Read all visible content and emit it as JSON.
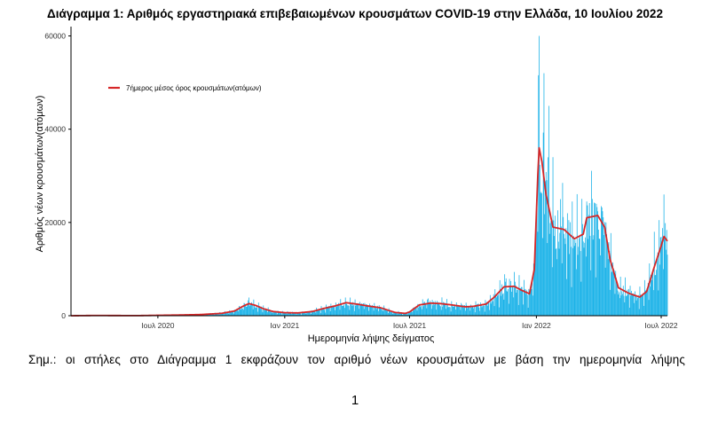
{
  "page": {
    "note": "Σημ.:  οι στήλες στο Διάγραμμα 1 εκφράζουν τον αριθμό νέων κρουσμάτων με βάση την ημερομηνία λήψης",
    "page_number": "1"
  },
  "colors": {
    "bars": "#1ab2e8",
    "line": "#d62728",
    "axis": "#000000"
  },
  "chart_data": {
    "type": "bar",
    "title": "Διάγραμμα 1: Αριθμός εργαστηριακά επιβεβαιωμένων κρουσμάτων COVID-19 στην Ελλάδα, 10 Ιουλίου 2022",
    "xlabel": "Ημερομηνία λήψης δείγματος",
    "ylabel": "Αριθμός νέων κρουσμάτων(ατόμων)",
    "x_range": [
      "2020-02-26",
      "2022-07-10"
    ],
    "ylim": [
      0,
      62000
    ],
    "y_ticks": [
      0,
      20000,
      40000,
      60000
    ],
    "x_ticks": [
      {
        "label": "Ιουλ 2020",
        "date": "2020-07-01"
      },
      {
        "label": "Ιαν 2021",
        "date": "2021-01-01"
      },
      {
        "label": "Ιουλ 2021",
        "date": "2021-07-01"
      },
      {
        "label": "Ιαν 2022",
        "date": "2022-01-01"
      },
      {
        "label": "Ιουλ 2022",
        "date": "2022-07-01"
      }
    ],
    "grid": false,
    "legend": {
      "position": "top-left",
      "entries": [
        "7ήμερος μέσος όρος κρουσμάτων(ατόμων)"
      ]
    },
    "series": [
      {
        "name": "7ήμερος μέσος όρος κρουσμάτων(ατόμων)",
        "kind": "line",
        "points": [
          [
            "2020-02-26",
            0
          ],
          [
            "2020-04-01",
            50
          ],
          [
            "2020-06-01",
            20
          ],
          [
            "2020-08-01",
            150
          ],
          [
            "2020-09-01",
            250
          ],
          [
            "2020-10-01",
            500
          ],
          [
            "2020-10-20",
            1000
          ],
          [
            "2020-11-01",
            2000
          ],
          [
            "2020-11-10",
            2600
          ],
          [
            "2020-11-20",
            2200
          ],
          [
            "2020-12-01",
            1500
          ],
          [
            "2020-12-15",
            900
          ],
          [
            "2021-01-01",
            650
          ],
          [
            "2021-01-20",
            600
          ],
          [
            "2021-02-10",
            900
          ],
          [
            "2021-02-25",
            1500
          ],
          [
            "2021-03-15",
            2100
          ],
          [
            "2021-03-31",
            2800
          ],
          [
            "2021-04-15",
            2500
          ],
          [
            "2021-05-01",
            2100
          ],
          [
            "2021-05-20",
            1700
          ],
          [
            "2021-06-10",
            700
          ],
          [
            "2021-06-25",
            500
          ],
          [
            "2021-07-01",
            800
          ],
          [
            "2021-07-15",
            2300
          ],
          [
            "2021-07-31",
            2700
          ],
          [
            "2021-08-15",
            2600
          ],
          [
            "2021-09-01",
            2300
          ],
          [
            "2021-09-20",
            1900
          ],
          [
            "2021-10-01",
            2000
          ],
          [
            "2021-10-20",
            2500
          ],
          [
            "2021-11-01",
            4000
          ],
          [
            "2021-11-15",
            6200
          ],
          [
            "2021-11-30",
            6300
          ],
          [
            "2021-12-10",
            5500
          ],
          [
            "2021-12-22",
            4700
          ],
          [
            "2021-12-29",
            10000
          ],
          [
            "2022-01-03",
            30000
          ],
          [
            "2022-01-05",
            36000
          ],
          [
            "2022-01-09",
            33000
          ],
          [
            "2022-01-15",
            26000
          ],
          [
            "2022-01-25",
            19000
          ],
          [
            "2022-02-10",
            18500
          ],
          [
            "2022-02-25",
            16500
          ],
          [
            "2022-03-10",
            17500
          ],
          [
            "2022-03-15",
            21000
          ],
          [
            "2022-03-31",
            21500
          ],
          [
            "2022-04-10",
            19000
          ],
          [
            "2022-04-18",
            12000
          ],
          [
            "2022-04-30",
            6000
          ],
          [
            "2022-05-15",
            4800
          ],
          [
            "2022-05-31",
            4000
          ],
          [
            "2022-06-10",
            5200
          ],
          [
            "2022-06-20",
            10000
          ],
          [
            "2022-07-01",
            15000
          ],
          [
            "2022-07-05",
            17000
          ],
          [
            "2022-07-10",
            16000
          ]
        ]
      },
      {
        "name": "",
        "kind": "bars",
        "peaks": [
          [
            "2020-11-09",
            3300
          ],
          [
            "2021-03-30",
            3900
          ],
          [
            "2021-07-28",
            3700
          ],
          [
            "2021-11-18",
            8000
          ],
          [
            "2022-01-05",
            60000
          ],
          [
            "2022-01-12",
            52000
          ],
          [
            "2022-01-19",
            45000
          ],
          [
            "2022-01-25",
            34000
          ],
          [
            "2022-02-05",
            25000
          ],
          [
            "2022-03-15",
            24500
          ],
          [
            "2022-03-29",
            24000
          ],
          [
            "2022-04-05",
            23500
          ],
          [
            "2022-04-12",
            20000
          ],
          [
            "2022-06-21",
            18000
          ],
          [
            "2022-06-28",
            20500
          ],
          [
            "2022-07-05",
            26000
          ]
        ]
      }
    ]
  }
}
